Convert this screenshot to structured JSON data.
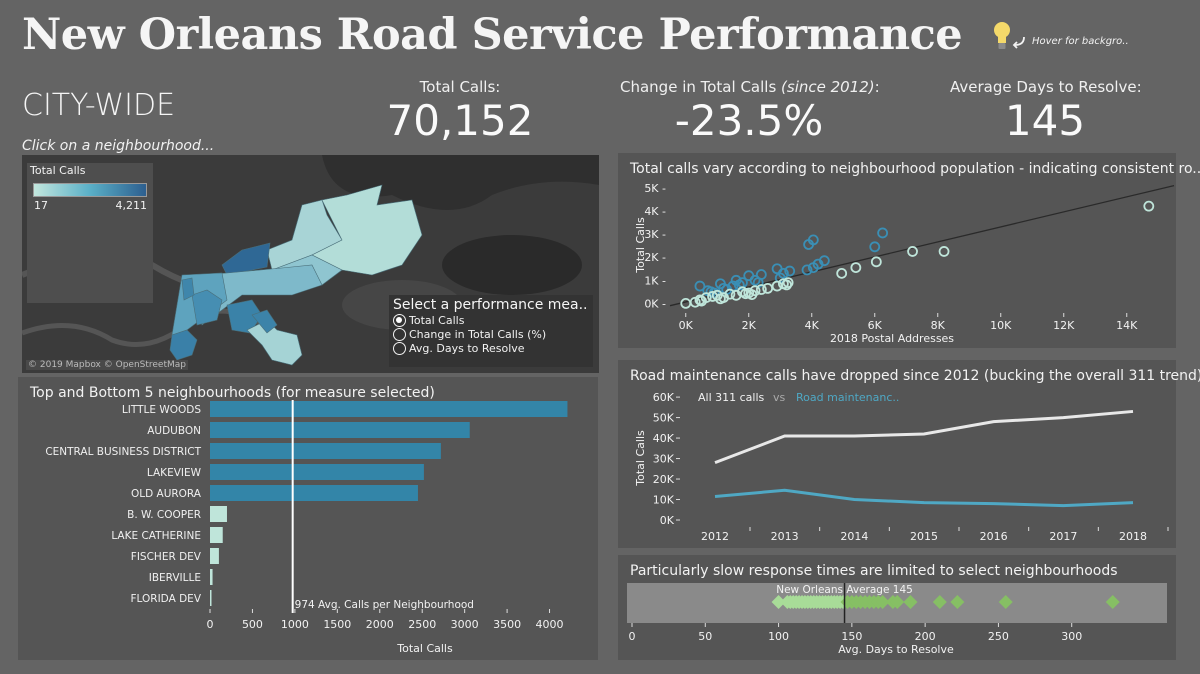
{
  "header": {
    "title": "New Orleans Road Service Performance",
    "hint": "Hover for backgro..",
    "region": "CITY-WIDE",
    "click_hint": "Click on a neighbourhood..."
  },
  "kpis": [
    {
      "label": "Total Calls:",
      "value": "70,152"
    },
    {
      "label": "Change in Total Calls ",
      "label_italic": "(since 2012)",
      "label_suffix": ":",
      "value": "-23.5%"
    },
    {
      "label": "Average Days to Resolve:",
      "value": "145"
    }
  ],
  "map": {
    "legend_title": "Total Calls",
    "legend_min": "17",
    "legend_max": "4,211",
    "measure_title": "Select a performance mea..",
    "measures": [
      {
        "label": "Total Calls",
        "selected": true
      },
      {
        "label": "Change in Total Calls (%)",
        "selected": false
      },
      {
        "label": "Avg. Days to Resolve",
        "selected": false
      }
    ],
    "attribution": "© 2019 Mapbox © OpenStreetMap",
    "colors": {
      "low": "#c2e6dd",
      "mid": "#5ab0c8",
      "high": "#2d5f8f"
    }
  },
  "chart_data": [
    {
      "type": "bar",
      "title": "Top and Bottom 5 neighbourhoods (for measure selected)",
      "categories": [
        "LITTLE WOODS",
        "AUDUBON",
        "CENTRAL BUSINESS DISTRICT",
        "LAKEVIEW",
        "OLD AURORA",
        "B. W. COOPER",
        "LAKE CATHERINE",
        "FISCHER DEV",
        "IBERVILLE",
        "FLORIDA DEV"
      ],
      "values": [
        4211,
        3060,
        2720,
        2520,
        2450,
        200,
        150,
        105,
        30,
        15
      ],
      "groups": [
        "top",
        "top",
        "top",
        "top",
        "top",
        "bottom",
        "bottom",
        "bottom",
        "bottom",
        "bottom"
      ],
      "xlabel": "Total Calls",
      "xlim": [
        0,
        4300
      ],
      "xticks": [
        0,
        500,
        1000,
        1500,
        2000,
        2500,
        3000,
        3500,
        4000
      ],
      "reference_line": {
        "value": 974,
        "label": "974 Avg. Calls per Neighbourhood"
      },
      "colors": {
        "top": "#3385a8",
        "bottom": "#bfe5da"
      }
    },
    {
      "type": "scatter",
      "title": "Total calls vary according to neighbourhood population - indicating consistent ro..",
      "xlabel": "2018 Postal Addresses",
      "ylabel": "Total Calls",
      "xlim": [
        -500,
        15500
      ],
      "ylim": [
        -200,
        5300
      ],
      "xticks": [
        0,
        2000,
        4000,
        6000,
        8000,
        10000,
        12000,
        14000
      ],
      "xtick_labels": [
        "0K",
        "2K",
        "4K",
        "6K",
        "8K",
        "10K",
        "12K",
        "14K"
      ],
      "yticks": [
        0,
        1000,
        2000,
        3000,
        4000,
        5000
      ],
      "ytick_labels": [
        "0K",
        "1K",
        "2K",
        "3K",
        "4K",
        "5K"
      ],
      "trend_line": {
        "x": [
          -500,
          15500
        ],
        "y": [
          -100,
          5100
        ]
      },
      "series": [
        {
          "name": "above",
          "color": "#3a8fb5",
          "points": [
            [
              450,
              750
            ],
            [
              700,
              550
            ],
            [
              900,
              450
            ],
            [
              1100,
              850
            ],
            [
              1300,
              600
            ],
            [
              1600,
              1000
            ],
            [
              1800,
              900
            ],
            [
              2000,
              1200
            ],
            [
              2200,
              1000
            ],
            [
              2400,
              1250
            ],
            [
              2900,
              1500
            ],
            [
              3100,
              1300
            ],
            [
              3300,
              1400
            ],
            [
              3850,
              1450
            ],
            [
              3900,
              2550
            ],
            [
              4050,
              2750
            ],
            [
              4200,
              1700
            ],
            [
              4400,
              1850
            ],
            [
              6000,
              2450
            ],
            [
              6250,
              3050
            ],
            [
              1500,
              750
            ],
            [
              2300,
              900
            ],
            [
              1200,
              650
            ],
            [
              800,
              500
            ],
            [
              1700,
              800
            ],
            [
              3000,
              1100
            ],
            [
              4050,
              1550
            ]
          ]
        },
        {
          "name": "below",
          "color": "#bfe5da",
          "points": [
            [
              0,
              0
            ],
            [
              300,
              50
            ],
            [
              450,
              150
            ],
            [
              650,
              250
            ],
            [
              850,
              300
            ],
            [
              1000,
              350
            ],
            [
              1200,
              250
            ],
            [
              1400,
              400
            ],
            [
              1600,
              350
            ],
            [
              1800,
              500
            ],
            [
              2000,
              450
            ],
            [
              2200,
              550
            ],
            [
              2400,
              600
            ],
            [
              2600,
              650
            ],
            [
              2900,
              750
            ],
            [
              3100,
              850
            ],
            [
              3250,
              900
            ],
            [
              3200,
              800
            ],
            [
              4950,
              1300
            ],
            [
              5400,
              1550
            ],
            [
              6050,
              1800
            ],
            [
              7200,
              2250
            ],
            [
              8200,
              2250
            ],
            [
              14700,
              4211
            ],
            [
              500,
              100
            ],
            [
              1100,
              200
            ],
            [
              1900,
              420
            ],
            [
              2100,
              380
            ]
          ]
        }
      ]
    },
    {
      "type": "line",
      "title": "Road maintenance calls have dropped since 2012 (bucking the overall 311 trend)",
      "ylabel": "Total Calls",
      "x": [
        2012,
        2013,
        2014,
        2015,
        2016,
        2017,
        2018
      ],
      "ylim": [
        0,
        62000
      ],
      "yticks": [
        0,
        10000,
        20000,
        30000,
        40000,
        50000,
        60000
      ],
      "ytick_labels": [
        "0K",
        "10K",
        "20K",
        "30K",
        "40K",
        "50K",
        "60K"
      ],
      "legend": {
        "all": "All 311 calls",
        "vs": "vs",
        "road": "Road maintenanc.."
      },
      "series": [
        {
          "name": "All 311 calls",
          "color": "#e8e8e8",
          "values": [
            28000,
            41000,
            41000,
            42000,
            48000,
            50000,
            53000
          ]
        },
        {
          "name": "Road maintenance",
          "color": "#4fa8c4",
          "values": [
            11500,
            14500,
            10000,
            8500,
            8000,
            7000,
            8500
          ]
        }
      ]
    },
    {
      "type": "scatter",
      "title": "Particularly slow response times are limited to select neighbourhoods",
      "xlabel": "Avg. Days to Resolve",
      "xlim": [
        0,
        350
      ],
      "xticks": [
        0,
        50,
        100,
        150,
        200,
        250,
        300
      ],
      "reference_line": {
        "value": 145,
        "label": "New Orleans    Average 145"
      },
      "colors": {
        "below_avg": "#a8dc98",
        "above_avg": "#86bf64"
      },
      "values": [
        100,
        106,
        108,
        110,
        112,
        114,
        116,
        118,
        120,
        122,
        124,
        126,
        128,
        130,
        132,
        134,
        136,
        138,
        140,
        142,
        144,
        147,
        150,
        153,
        156,
        159,
        162,
        165,
        168,
        171,
        178,
        181,
        190,
        210,
        222,
        255,
        328
      ]
    }
  ]
}
